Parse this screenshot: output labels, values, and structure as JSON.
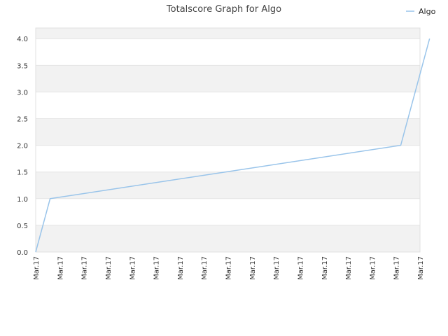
{
  "chart_data": {
    "type": "line",
    "title": "Totalscore Graph for Algo",
    "xlabel": "",
    "ylabel": "",
    "x_tick_labels": [
      "Mar.17",
      "Mar.17",
      "Mar.17",
      "Mar.17",
      "Mar.17",
      "Mar.17",
      "Mar.17",
      "Mar.17",
      "Mar.17",
      "Mar.17",
      "Mar.17",
      "Mar.17",
      "Mar.17",
      "Mar.17",
      "Mar.17",
      "Mar.17",
      "Mar.17"
    ],
    "y_ticks": [
      "0.0",
      "0.5",
      "1.0",
      "1.5",
      "2.0",
      "2.5",
      "3.0",
      "3.5",
      "4.0"
    ],
    "ylim": [
      0,
      4.2
    ],
    "grid": "horizontal bands",
    "legend": "top-right",
    "series": [
      {
        "name": "Algo",
        "color": "#99c4ea",
        "x": [
          0,
          0.6,
          15.2,
          16.4
        ],
        "values": [
          0,
          1,
          2,
          4
        ]
      }
    ]
  }
}
